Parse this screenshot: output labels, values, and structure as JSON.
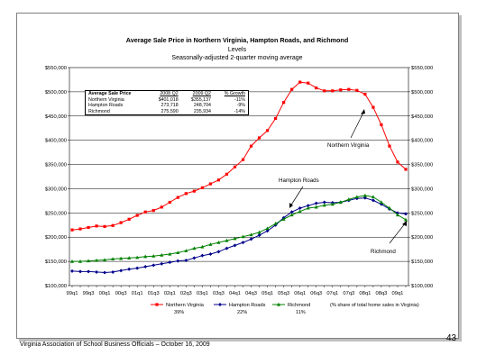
{
  "footer": "Virginia Association of School Business Officials – October 16, 2009",
  "page_number": "43",
  "table": {
    "title": "Average Sale Price",
    "headers": [
      "2008 Q2",
      "2009 Q2",
      "% Growth"
    ],
    "rows": [
      {
        "name": "Northern Virginia",
        "v1": "$401,018",
        "v2": "$355,137",
        "g": "-11%"
      },
      {
        "name": "Hampton Roads",
        "v1": "273,718",
        "v2": "248,704",
        "g": "-9%"
      },
      {
        "name": "Richmond",
        "v1": "275,590",
        "v2": "235,934",
        "g": "-14%"
      }
    ]
  },
  "chart_data": {
    "type": "line",
    "title": "Average Sale Price in Northern Virginia, Hampton Roads, and Richmond",
    "subtitle": "Levels",
    "subtitle2": "Seasonally-adjusted 2-quarter moving average",
    "ylim": [
      100000,
      550000
    ],
    "yticks": [
      "$100,000",
      "$150,000",
      "$200,000",
      "$250,000",
      "$300,000",
      "$350,000",
      "$400,000",
      "$450,000",
      "$500,000",
      "$550,000"
    ],
    "xtick_labels": [
      "99q1",
      "99q3",
      "00q1",
      "00q3",
      "01q1",
      "01q3",
      "02q1",
      "02q3",
      "03q1",
      "03q3",
      "04q1",
      "04q3",
      "05q1",
      "05q3",
      "06q1",
      "06q3",
      "07q1",
      "07q3",
      "08q1",
      "08q3",
      "09q1"
    ],
    "x": [
      "99q1",
      "99q2",
      "99q3",
      "99q4",
      "00q1",
      "00q2",
      "00q3",
      "00q4",
      "01q1",
      "01q2",
      "01q3",
      "01q4",
      "02q1",
      "02q2",
      "02q3",
      "02q4",
      "03q1",
      "03q2",
      "03q3",
      "03q4",
      "04q1",
      "04q2",
      "04q3",
      "04q4",
      "05q1",
      "05q2",
      "05q3",
      "05q4",
      "06q1",
      "06q2",
      "06q3",
      "06q4",
      "07q1",
      "07q2",
      "07q3",
      "07q4",
      "08q1",
      "08q2",
      "08q3",
      "08q4",
      "09q1",
      "09q2"
    ],
    "series": [
      {
        "name": "Northern Virginia",
        "share": "39%",
        "color": "#ff0000",
        "marker": "square",
        "values": [
          215000,
          217000,
          220000,
          223000,
          222000,
          224000,
          230000,
          237000,
          245000,
          252000,
          255000,
          262000,
          272000,
          282000,
          290000,
          295000,
          302000,
          310000,
          318000,
          330000,
          345000,
          360000,
          388000,
          405000,
          420000,
          445000,
          478000,
          505000,
          520000,
          518000,
          508000,
          502000,
          502000,
          504000,
          505000,
          503000,
          495000,
          468000,
          432000,
          388000,
          355000,
          340000
        ]
      },
      {
        "name": "Hampton Roads",
        "share": "22%",
        "color": "#00008b",
        "marker": "diamond",
        "values": [
          130000,
          129000,
          129000,
          128000,
          127000,
          128000,
          131000,
          134000,
          136000,
          139000,
          142000,
          145000,
          148000,
          151000,
          152000,
          157000,
          162000,
          165000,
          170000,
          177000,
          183000,
          189000,
          196000,
          204000,
          213000,
          225000,
          240000,
          252000,
          260000,
          265000,
          270000,
          272000,
          271000,
          272000,
          276000,
          280000,
          281000,
          276000,
          268000,
          258000,
          250000,
          248000
        ]
      },
      {
        "name": "Richmond",
        "share": "11%",
        "color": "#008000",
        "marker": "triangle",
        "values": [
          150000,
          150000,
          151000,
          152000,
          153000,
          155000,
          156000,
          157000,
          158000,
          160000,
          161000,
          163000,
          165000,
          168000,
          172000,
          177000,
          180000,
          185000,
          189000,
          193000,
          197000,
          201000,
          205000,
          210000,
          218000,
          228000,
          237000,
          246000,
          253000,
          260000,
          262000,
          266000,
          268000,
          272000,
          278000,
          283000,
          286000,
          283000,
          272000,
          260000,
          246000,
          236000
        ]
      }
    ],
    "annotations": [
      {
        "text": "Northern Virginia"
      },
      {
        "text": "Hampton Roads"
      },
      {
        "text": "Richmond"
      }
    ],
    "legend_note": "(% share of total home sales in Virginia)",
    "legend_position": "bottom",
    "grid": true
  }
}
